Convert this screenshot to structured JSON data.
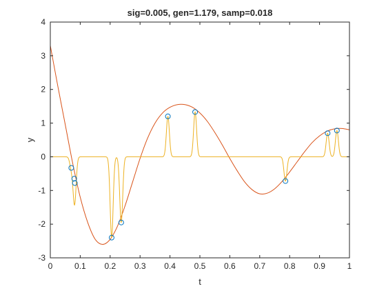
{
  "chart_data": {
    "type": "line",
    "title": "sig=0.005, gen=1.179, samp=0.018",
    "xlabel": "t",
    "ylabel": "y",
    "xlim": [
      0,
      1
    ],
    "ylim": [
      -3,
      4
    ],
    "xticks": [
      "0",
      "0.1",
      "0.2",
      "0.3",
      "0.4",
      "0.5",
      "0.6",
      "0.7",
      "0.8",
      "0.9",
      "1"
    ],
    "yticks": [
      "-3",
      "-2",
      "-1",
      "0",
      "1",
      "2",
      "3",
      "4"
    ],
    "grid": false,
    "series": [
      {
        "kind": "line",
        "color": "#d95319",
        "x": [
          0,
          0.025,
          0.05,
          0.075,
          0.1,
          0.125,
          0.15,
          0.175,
          0.2,
          0.225,
          0.25,
          0.275,
          0.3,
          0.325,
          0.35,
          0.375,
          0.4,
          0.425,
          0.45,
          0.475,
          0.5,
          0.525,
          0.55,
          0.575,
          0.6,
          0.625,
          0.65,
          0.675,
          0.7,
          0.725,
          0.75,
          0.775,
          0.8,
          0.825,
          0.85,
          0.875,
          0.9,
          0.925,
          0.95,
          0.975,
          1
        ],
        "y": [
          3.3,
          2.1,
          0.95,
          -0.2,
          -1.2,
          -1.95,
          -2.45,
          -2.6,
          -2.45,
          -2.05,
          -1.45,
          -0.75,
          -0.05,
          0.55,
          1.0,
          1.3,
          1.47,
          1.55,
          1.55,
          1.47,
          1.3,
          1.05,
          0.72,
          0.35,
          -0.05,
          -0.42,
          -0.75,
          -0.98,
          -1.1,
          -1.08,
          -0.95,
          -0.73,
          -0.45,
          -0.15,
          0.15,
          0.42,
          0.62,
          0.76,
          0.83,
          0.84,
          0.8
        ]
      },
      {
        "kind": "pulses",
        "color": "#edb120",
        "baseline": 0,
        "sigma": 0.005,
        "x": [
          0.07,
          0.08,
          0.082,
          0.205,
          0.237,
          0.393,
          0.484,
          0.786,
          0.927,
          0.958
        ],
        "y": [
          -0.33,
          -0.65,
          -0.78,
          -2.4,
          -1.95,
          1.2,
          1.33,
          -0.72,
          0.7,
          0.78
        ]
      },
      {
        "kind": "markers",
        "color": "#0072bd",
        "x": [
          0.07,
          0.08,
          0.082,
          0.205,
          0.237,
          0.393,
          0.484,
          0.786,
          0.927,
          0.958
        ],
        "y": [
          -0.33,
          -0.65,
          -0.78,
          -2.4,
          -1.95,
          1.2,
          1.33,
          -0.72,
          0.7,
          0.78
        ]
      }
    ]
  }
}
